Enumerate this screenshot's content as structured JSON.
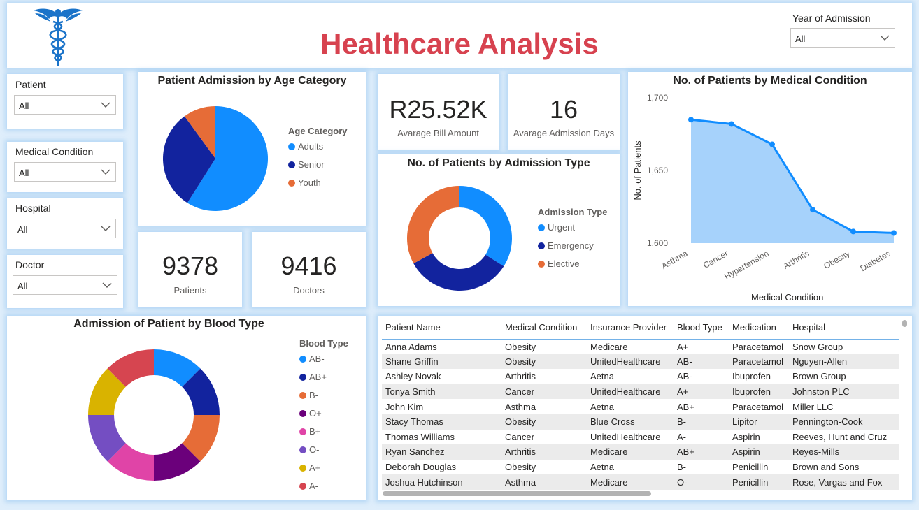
{
  "header": {
    "title": "Healthcare Analysis",
    "logo_icon": "caduceus-icon"
  },
  "year_slicer": {
    "label": "Year of Admission",
    "value": "All"
  },
  "slicers": [
    {
      "label": "Patient",
      "value": "All"
    },
    {
      "label": "Medical Condition",
      "value": "All"
    },
    {
      "label": "Hospital",
      "value": "All"
    },
    {
      "label": "Doctor",
      "value": "All"
    }
  ],
  "kpis": {
    "patients": {
      "value": "9378",
      "label": "Patients"
    },
    "doctors": {
      "value": "9416",
      "label": "Doctors"
    },
    "bill": {
      "value": "R25.52K",
      "label": "Avarage Bill Amount"
    },
    "days": {
      "value": "16",
      "label": "Avarage Admission Days"
    }
  },
  "colors": {
    "accent": "#d7424f",
    "blue": "#118dff",
    "navy": "#12239e",
    "orange": "#e66c37",
    "area": "#a6d2fb"
  },
  "chart_data": [
    {
      "type": "pie",
      "title": "Patient Admission by Age Category",
      "legend_title": "Age Category",
      "categories": [
        "Adults",
        "Senior",
        "Youth"
      ],
      "values": [
        59,
        31,
        10
      ],
      "colors": [
        "#118dff",
        "#12239e",
        "#e66c37"
      ]
    },
    {
      "type": "pie",
      "title": "No. of Patients by Admission Type",
      "legend_title": "Admission Type",
      "donut": true,
      "categories": [
        "Urgent",
        "Emergency",
        "Elective"
      ],
      "values": [
        34,
        33,
        33
      ],
      "colors": [
        "#118dff",
        "#12239e",
        "#e66c37"
      ]
    },
    {
      "type": "area",
      "title": "No. of Patients by Medical Condition",
      "xlabel": "Medical Condition",
      "ylabel": "No. of Patients",
      "categories": [
        "Asthma",
        "Cancer",
        "Hypertension",
        "Arthritis",
        "Obesity",
        "Diabetes"
      ],
      "values": [
        1685,
        1682,
        1668,
        1623,
        1608,
        1607
      ],
      "ylim": [
        1600,
        1700
      ],
      "yticks": [
        "1,600",
        "1,650",
        "1,700"
      ],
      "ytick_values": [
        1600,
        1650,
        1700
      ],
      "grid": false
    },
    {
      "type": "pie",
      "title": "Admission of Patient by Blood Type",
      "legend_title": "Blood Type",
      "donut": true,
      "categories": [
        "AB-",
        "AB+",
        "B-",
        "O+",
        "B+",
        "O-",
        "A+",
        "A-"
      ],
      "values": [
        12.5,
        12.5,
        12.5,
        12.5,
        12.5,
        12.5,
        12.5,
        12.5
      ],
      "colors": [
        "#118dff",
        "#12239e",
        "#e66c37",
        "#6b007b",
        "#e044a7",
        "#744ec2",
        "#d9b300",
        "#d64550"
      ]
    }
  ],
  "table": {
    "columns": [
      "Patient Name",
      "Medical Condition",
      "Insurance Provider",
      "Blood Type",
      "Medication",
      "Hospital"
    ],
    "rows": [
      [
        "Anna Adams",
        "Obesity",
        "Medicare",
        "A+",
        "Paracetamol",
        "Snow Group"
      ],
      [
        "Shane Griffin",
        "Obesity",
        "UnitedHealthcare",
        "AB-",
        "Paracetamol",
        "Nguyen-Allen"
      ],
      [
        "Ashley Novak",
        "Arthritis",
        "Aetna",
        "AB-",
        "Ibuprofen",
        "Brown Group"
      ],
      [
        "Tonya Smith",
        "Cancer",
        "UnitedHealthcare",
        "A+",
        "Ibuprofen",
        "Johnston PLC"
      ],
      [
        "John Kim",
        "Asthma",
        "Aetna",
        "AB+",
        "Paracetamol",
        "Miller LLC"
      ],
      [
        "Stacy Thomas",
        "Obesity",
        "Blue Cross",
        "B-",
        "Lipitor",
        "Pennington-Cook"
      ],
      [
        "Thomas Williams",
        "Cancer",
        "UnitedHealthcare",
        "A-",
        "Aspirin",
        "Reeves, Hunt and Cruz"
      ],
      [
        "Ryan Sanchez",
        "Arthritis",
        "Medicare",
        "AB+",
        "Aspirin",
        "Reyes-Mills"
      ],
      [
        "Deborah Douglas",
        "Obesity",
        "Aetna",
        "B-",
        "Penicillin",
        "Brown and Sons"
      ],
      [
        "Joshua Hutchinson",
        "Asthma",
        "Medicare",
        "O-",
        "Penicillin",
        "Rose, Vargas and Fox"
      ]
    ]
  }
}
